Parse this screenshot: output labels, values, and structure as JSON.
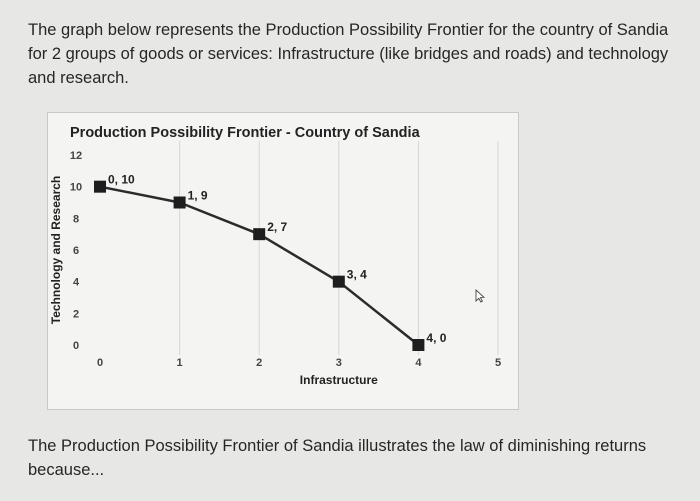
{
  "text": {
    "intro": "The graph below represents the Production Possibility Frontier for the country of Sandia for 2 groups of goods or services: Infrastructure (like bridges and roads) and technology and research.",
    "outro": "The Production Possibility Frontier of Sandia illustrates the law of diminishing returns because..."
  },
  "icons": {
    "cursor": "mouse-pointer-icon"
  },
  "colors": {
    "line": "#2b2b2b",
    "marker": "#1e1e1e",
    "grid": "#d6d6d4"
  },
  "chart_data": {
    "type": "line",
    "title": "Production Possibility Frontier - Country of Sandia",
    "xlabel": "Infrastructure",
    "ylabel": "Technology and Research",
    "xlim": [
      0,
      5
    ],
    "ylim": [
      0,
      12
    ],
    "x_ticks": [
      0,
      1,
      2,
      3,
      4,
      5
    ],
    "y_ticks": [
      0,
      2,
      4,
      6,
      8,
      10,
      12
    ],
    "grid": "vertical",
    "series": [
      {
        "x": [
          0,
          1,
          2,
          3,
          4
        ],
        "y": [
          10,
          9,
          7,
          4,
          0
        ],
        "labels": [
          "0, 10",
          "1, 9",
          "2, 7",
          "3, 4",
          "4, 0"
        ]
      }
    ]
  }
}
